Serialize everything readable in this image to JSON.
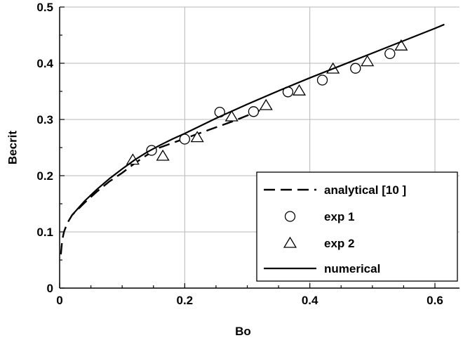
{
  "chart_data": {
    "type": "line",
    "title": "",
    "xlabel": "Bo",
    "ylabel": "Becrit",
    "xlim": [
      0,
      0.6
    ],
    "ylim": [
      0,
      0.5
    ],
    "xticks": [
      "0",
      "0.2",
      "0.4",
      "0.6"
    ],
    "yticks": [
      "0",
      "0.1",
      "0.2",
      "0.3",
      "0.4",
      "0.5"
    ],
    "grid": true,
    "legend_position": "bottom-right",
    "series": [
      {
        "name": "analytical [10 ]",
        "style": "dashed-line",
        "color": "#000000",
        "points": [
          [
            0.002,
            0.06
          ],
          [
            0.004,
            0.085
          ],
          [
            0.007,
            0.1
          ],
          [
            0.012,
            0.115
          ],
          [
            0.02,
            0.13
          ],
          [
            0.04,
            0.152
          ],
          [
            0.06,
            0.172
          ],
          [
            0.08,
            0.19
          ],
          [
            0.1,
            0.205
          ],
          [
            0.12,
            0.222
          ],
          [
            0.14,
            0.237
          ],
          [
            0.16,
            0.25
          ],
          [
            0.18,
            0.258
          ],
          [
            0.2,
            0.266
          ],
          [
            0.22,
            0.274
          ],
          [
            0.24,
            0.282
          ],
          [
            0.26,
            0.29
          ],
          [
            0.28,
            0.298
          ],
          [
            0.3,
            0.307
          ],
          [
            0.32,
            0.316
          ]
        ]
      },
      {
        "name": "exp 1",
        "style": "circle-marker",
        "color": "#000000",
        "points": [
          [
            0.147,
            0.245
          ],
          [
            0.2,
            0.265
          ],
          [
            0.256,
            0.313
          ],
          [
            0.31,
            0.314
          ],
          [
            0.365,
            0.349
          ],
          [
            0.42,
            0.37
          ],
          [
            0.473,
            0.391
          ],
          [
            0.528,
            0.417
          ]
        ]
      },
      {
        "name": "exp 2",
        "style": "triangle-marker",
        "color": "#000000",
        "points": [
          [
            0.117,
            0.228
          ],
          [
            0.165,
            0.235
          ],
          [
            0.22,
            0.268
          ],
          [
            0.275,
            0.305
          ],
          [
            0.33,
            0.325
          ],
          [
            0.383,
            0.351
          ],
          [
            0.437,
            0.39
          ],
          [
            0.492,
            0.403
          ],
          [
            0.546,
            0.431
          ]
        ]
      },
      {
        "name": "numerical",
        "style": "solid-line",
        "color": "#000000",
        "points": [
          [
            0.02,
            0.13
          ],
          [
            0.04,
            0.155
          ],
          [
            0.06,
            0.176
          ],
          [
            0.08,
            0.195
          ],
          [
            0.1,
            0.212
          ],
          [
            0.12,
            0.228
          ],
          [
            0.14,
            0.242
          ],
          [
            0.16,
            0.254
          ],
          [
            0.18,
            0.265
          ],
          [
            0.2,
            0.275
          ],
          [
            0.25,
            0.302
          ],
          [
            0.3,
            0.327
          ],
          [
            0.35,
            0.351
          ],
          [
            0.4,
            0.374
          ],
          [
            0.45,
            0.396
          ],
          [
            0.5,
            0.418
          ],
          [
            0.55,
            0.44
          ],
          [
            0.6,
            0.462
          ],
          [
            0.615,
            0.469
          ]
        ]
      }
    ]
  }
}
